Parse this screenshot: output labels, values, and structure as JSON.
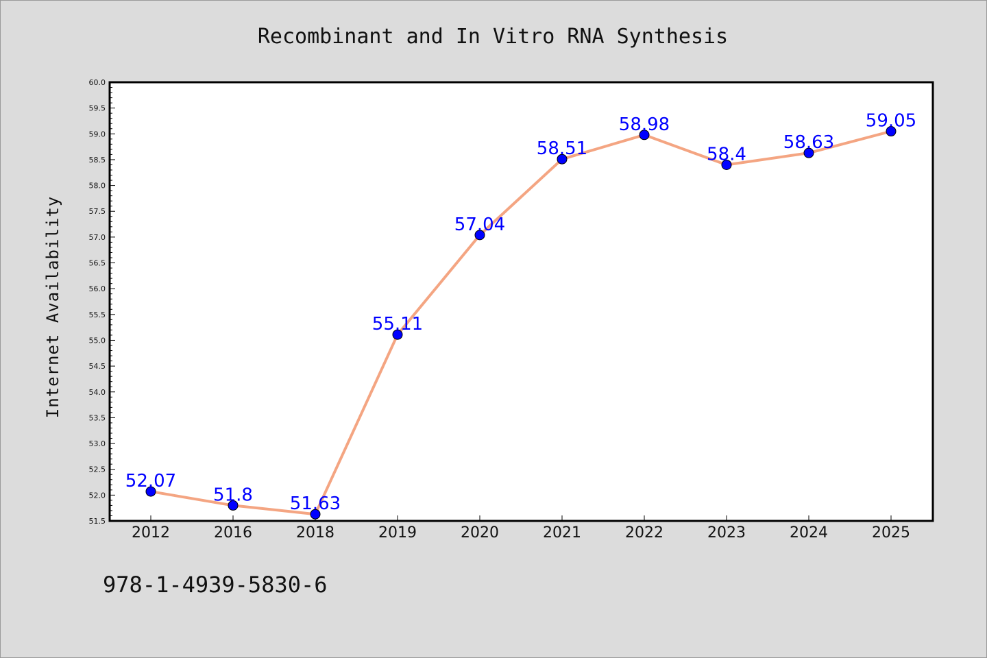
{
  "chart_data": {
    "type": "line",
    "title": "Recombinant and In Vitro RNA Synthesis",
    "xlabel": "",
    "ylabel": "Internet Availability",
    "categories": [
      "2012",
      "2016",
      "2018",
      "2019",
      "2020",
      "2021",
      "2022",
      "2023",
      "2024",
      "2025"
    ],
    "values": [
      52.07,
      51.8,
      51.63,
      55.11,
      57.04,
      58.51,
      58.98,
      58.4,
      58.63,
      59.05
    ],
    "data_labels": [
      "52.07",
      "51.8",
      "51.63",
      "55.11",
      "57.04",
      "58.51",
      "58.98",
      "58.4",
      "58.63",
      "59.05"
    ],
    "ylim": [
      51.5,
      60.0
    ],
    "yticks": [
      "51.5",
      "52.0",
      "52.5",
      "53.0",
      "53.5",
      "54.0",
      "54.5",
      "55.0",
      "55.5",
      "56.0",
      "56.5",
      "57.0",
      "57.5",
      "58.0",
      "58.5",
      "59.0",
      "59.5",
      "60.0"
    ],
    "grid": false,
    "legend": "none",
    "colors": {
      "line": "#f4a582",
      "marker": "#0000ff",
      "data_label": "#0000ff",
      "background": "#dcdcdc",
      "plot_area": "#ffffff"
    }
  },
  "footer": {
    "isbn": "978-1-4939-5830-6"
  }
}
